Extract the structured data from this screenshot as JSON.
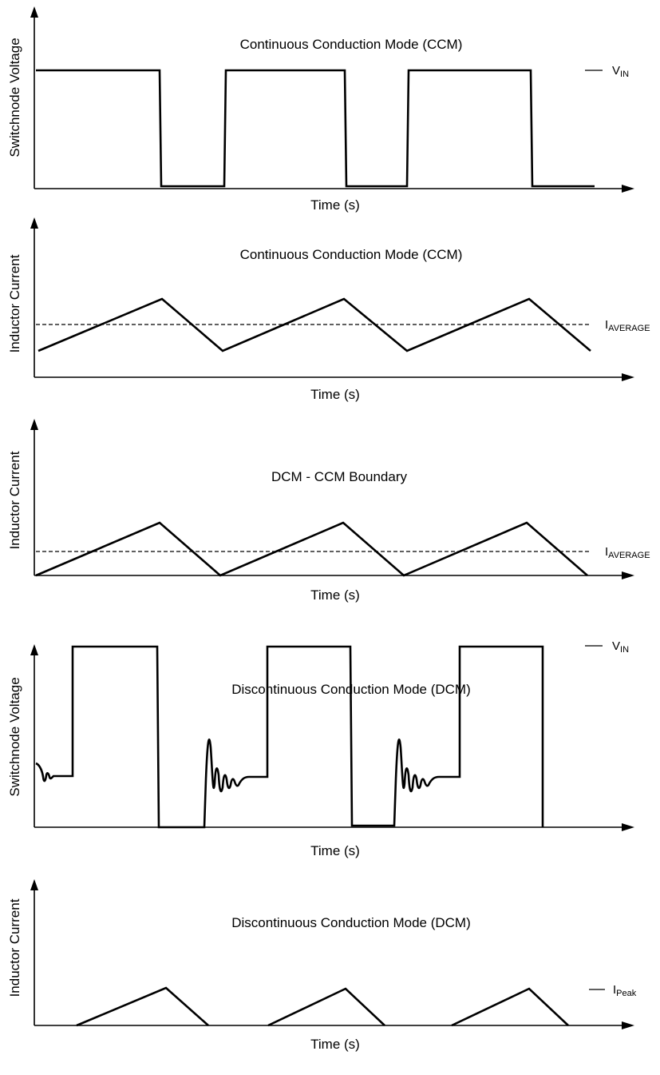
{
  "panels": [
    {
      "title": "Continuous Conduction Mode (CCM)",
      "ylabel": "Switchnode Voltage",
      "xlabel": "Time (s)",
      "marker": {
        "main": "V",
        "sub": "IN"
      }
    },
    {
      "title": "Continuous Conduction Mode (CCM)",
      "ylabel": "Inductor Current",
      "xlabel": "Time (s)",
      "marker": {
        "main": "I",
        "sub": "AVERAGE"
      }
    },
    {
      "title": "DCM - CCM Boundary",
      "ylabel": "Inductor Current",
      "xlabel": "Time (s)",
      "marker": {
        "main": "I",
        "sub": "AVERAGE"
      }
    },
    {
      "title": "Discontinuous Conduction Mode (DCM)",
      "ylabel": "Switchnode Voltage",
      "xlabel": "Time (s)",
      "marker": {
        "main": "V",
        "sub": "IN"
      }
    },
    {
      "title": "Discontinuous Conduction Mode (DCM)",
      "ylabel": "Inductor Current",
      "xlabel": "Time (s)",
      "marker": {
        "main": "I",
        "sub": "Peak"
      }
    }
  ]
}
